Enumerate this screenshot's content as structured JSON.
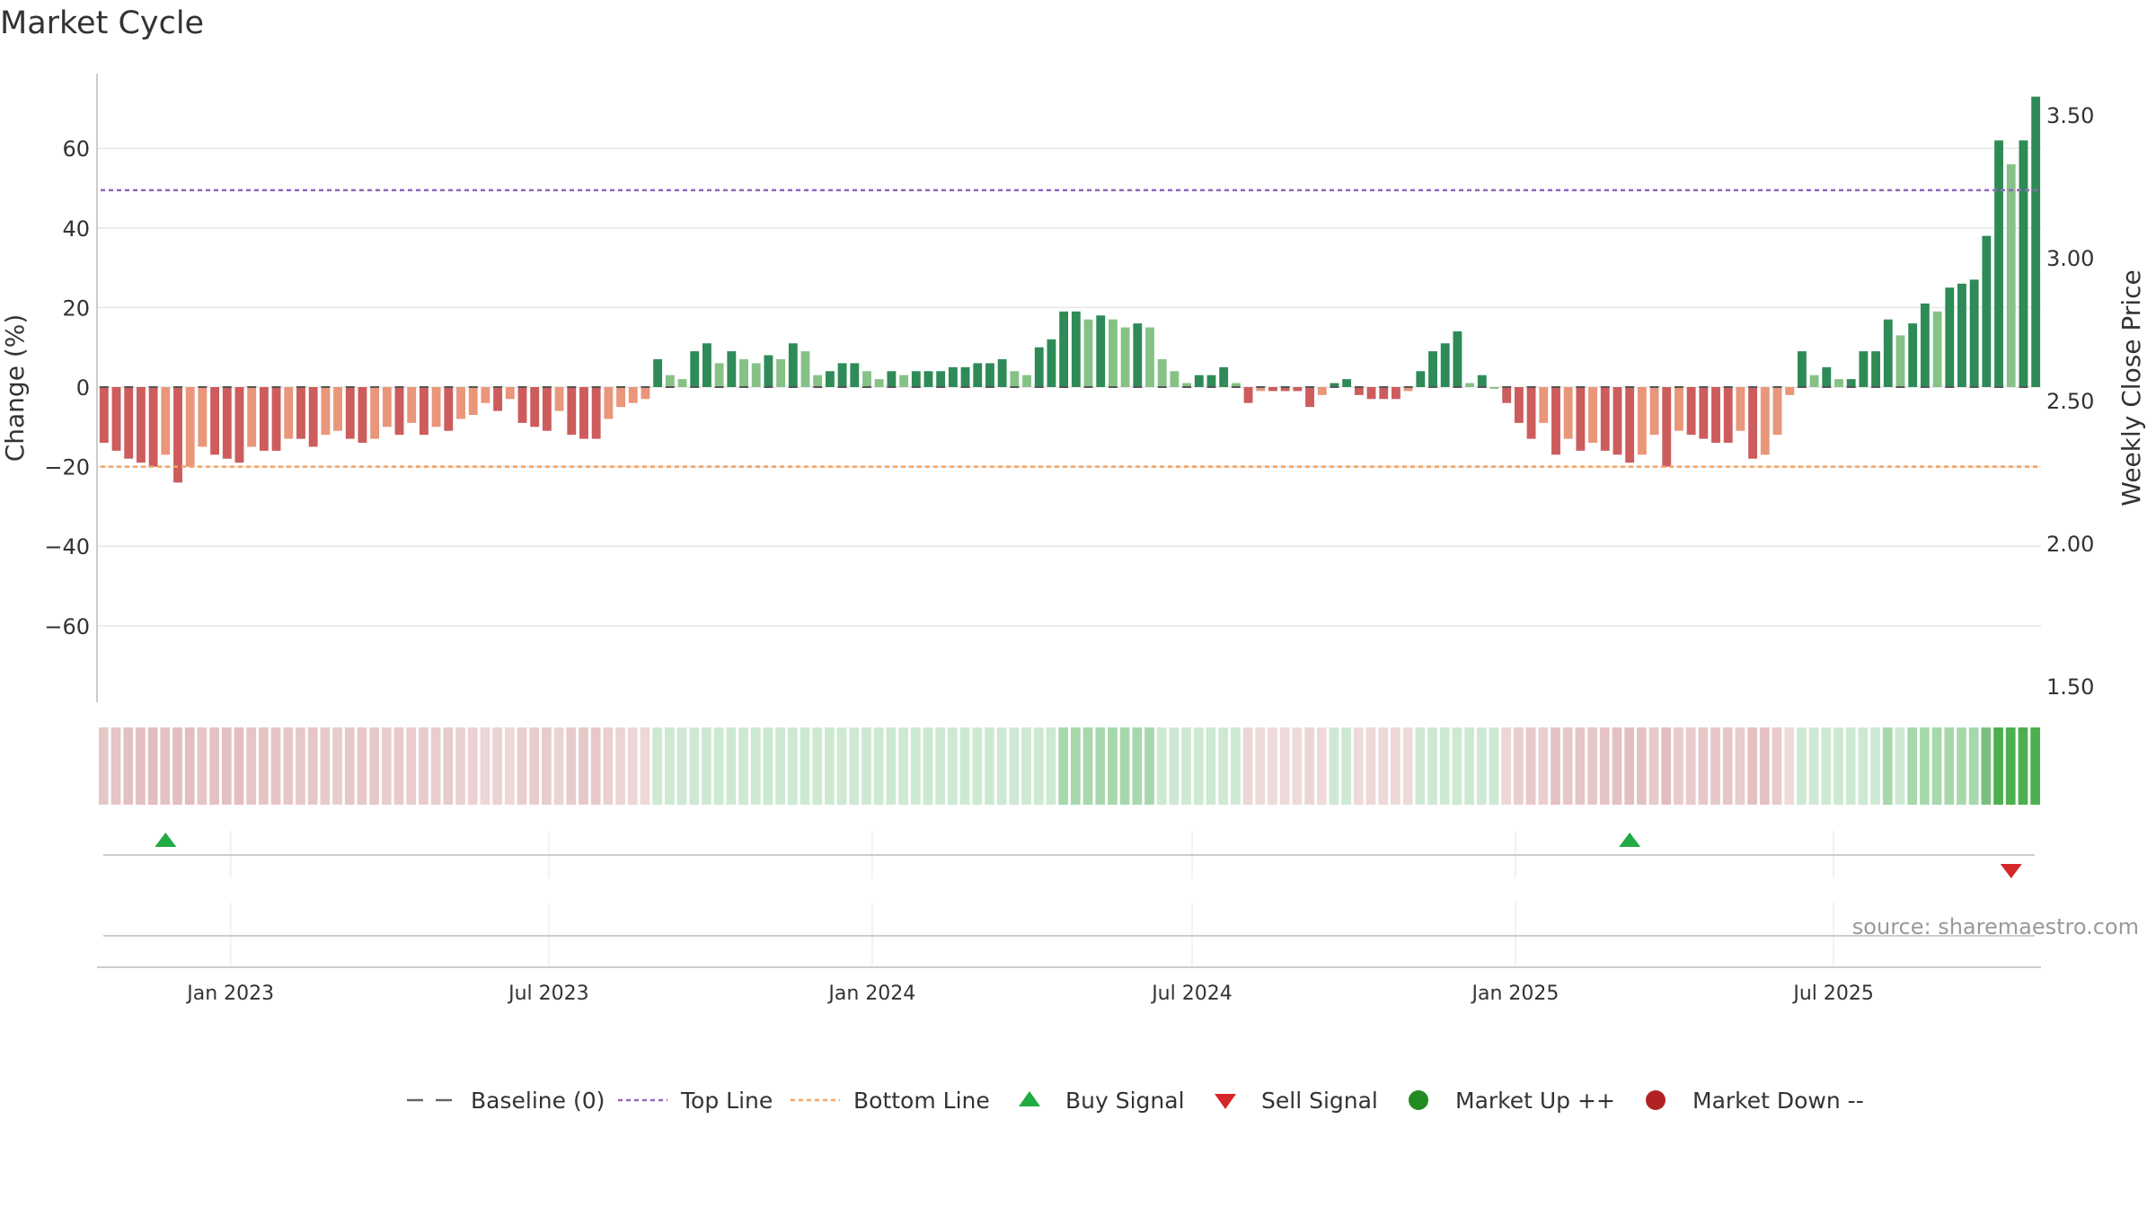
{
  "chart_data": {
    "type": "bar",
    "title": "Market Cycle",
    "ylabel": "Change (%)",
    "y2label": "Weekly Close Price",
    "ylim": [
      -80,
      80
    ],
    "y2lim": [
      1.5,
      3.6
    ],
    "y_ticks": [
      "60",
      "40",
      "20",
      "0",
      "−20",
      "−40",
      "−60"
    ],
    "y2_ticks": [
      "3.50",
      "3.00",
      "2.50",
      "2.00",
      "1.50"
    ],
    "x_ticks": [
      "Jan 2023",
      "Jul 2023",
      "Jan 2024",
      "Jul 2024",
      "Jan 2025",
      "Jul 2025"
    ],
    "x_tick_dates": [
      "2023-01-01",
      "2023-07-01",
      "2024-01-01",
      "2024-07-01",
      "2025-01-01",
      "2025-07-01"
    ],
    "x_range": [
      "2022-10-17",
      "2025-10-27"
    ],
    "first_week": "2022-10-21",
    "week_step_days": 7,
    "values": [
      -14,
      -16,
      -18,
      -19,
      -20,
      -17,
      -24,
      -20,
      -15,
      -17,
      -18,
      -19,
      -15,
      -16,
      -16,
      -13,
      -13,
      -15,
      -12,
      -11,
      -13,
      -14,
      -13,
      -10,
      -12,
      -9,
      -12,
      -10,
      -11,
      -8,
      -7,
      -4,
      -6,
      -3,
      -9,
      -10,
      -11,
      -6,
      -12,
      -13,
      -13,
      -8,
      -5,
      -4,
      -3,
      7,
      3,
      2,
      9,
      11,
      6,
      9,
      7,
      6,
      8,
      7,
      11,
      9,
      3,
      4,
      6,
      6,
      4,
      2,
      4,
      3,
      4,
      4,
      4,
      5,
      5,
      6,
      6,
      7,
      4,
      3,
      10,
      12,
      19,
      19,
      17,
      18,
      17,
      15,
      16,
      15,
      7,
      4,
      1,
      3,
      3,
      5,
      1,
      -4,
      -1,
      -1,
      -1,
      -1,
      -5,
      -2,
      1,
      2,
      -2,
      -3,
      -3,
      -3,
      -1,
      4,
      9,
      11,
      14,
      1,
      3,
      0,
      -4,
      -9,
      -13,
      -9,
      -17,
      -13,
      -16,
      -14,
      -16,
      -17,
      -19,
      -17,
      -12,
      -20,
      -11,
      -12,
      -13,
      -14,
      -14,
      -11,
      -18,
      -17,
      -12,
      -2,
      9,
      3,
      5,
      2,
      2,
      9,
      9,
      17,
      13,
      16,
      21,
      19,
      25,
      26,
      27,
      38,
      62,
      56,
      62,
      73
    ],
    "reference_lines": [
      {
        "name": "Baseline (0)",
        "y": 0,
        "color": "#666666",
        "style": "dashed"
      },
      {
        "name": "Top Line",
        "y": 49.5,
        "color": "#9467bd",
        "style": "dotted"
      },
      {
        "name": "Bottom Line",
        "y": -20,
        "color": "#f4a261",
        "style": "dotted"
      }
    ],
    "buy_signals": [
      "2022-11-25",
      "2025-03-07"
    ],
    "sell_signals": [
      "2025-10-10"
    ],
    "legend": [
      "Baseline (0)",
      "Top Line",
      "Bottom Line",
      "Buy Signal",
      "Sell Signal",
      "Market Up ++",
      "Market Down --"
    ],
    "legend_position": "bottom-center",
    "grid": true,
    "source_text": "source: sharemaestro.com",
    "colors": {
      "strong_up": "#2e8b57",
      "mild_up": "#86c286",
      "strong_down": "#cd5c5c",
      "mild_down": "#e9967a",
      "top_line": "#9467bd",
      "bottom_line": "#f4a261",
      "buy": "#22aa44",
      "sell": "#d62728",
      "market_up": "#228b22",
      "market_down": "#b22222"
    }
  }
}
